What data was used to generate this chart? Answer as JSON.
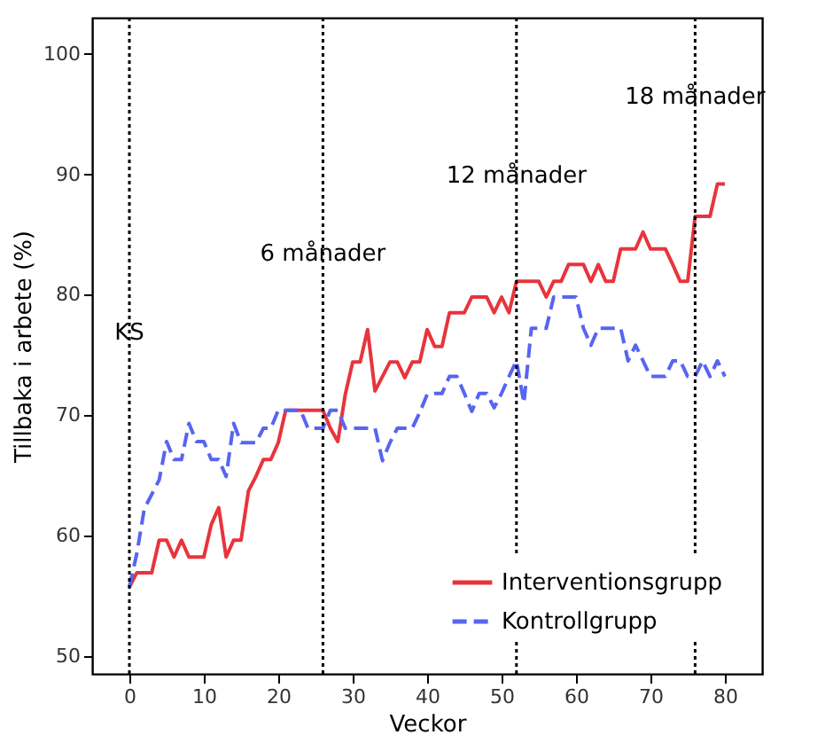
{
  "chart_data": {
    "type": "line",
    "xlabel": "Veckor",
    "ylabel": "Tillbaka i arbete (%)",
    "x": [
      0,
      1,
      2,
      3,
      4,
      5,
      6,
      7,
      8,
      9,
      10,
      11,
      12,
      13,
      14,
      15,
      16,
      17,
      18,
      19,
      20,
      21,
      22,
      23,
      24,
      25,
      26,
      27,
      28,
      29,
      30,
      31,
      32,
      33,
      34,
      35,
      36,
      37,
      38,
      39,
      40,
      41,
      42,
      43,
      44,
      45,
      46,
      47,
      48,
      49,
      50,
      51,
      52,
      53,
      54,
      55,
      56,
      57,
      58,
      59,
      60,
      61,
      62,
      63,
      64,
      65,
      66,
      67,
      68,
      69,
      70,
      71,
      72,
      73,
      74,
      75,
      76,
      77,
      78,
      79,
      80
    ],
    "series": [
      {
        "name": "Interventionsgrupp",
        "color": "#e8343c",
        "line_style": "solid",
        "values": [
          55.7,
          56.9,
          56.9,
          56.9,
          59.6,
          59.6,
          58.2,
          59.6,
          58.2,
          58.2,
          58.2,
          60.9,
          62.3,
          58.2,
          59.6,
          59.6,
          63.7,
          64.9,
          66.3,
          66.3,
          67.7,
          70.4,
          70.4,
          70.4,
          70.4,
          70.4,
          70.4,
          68.9,
          67.8,
          71.7,
          74.4,
          74.4,
          77.1,
          72.0,
          73.2,
          74.4,
          74.4,
          73.1,
          74.4,
          74.4,
          77.1,
          75.7,
          75.7,
          78.5,
          78.5,
          78.5,
          79.8,
          79.8,
          79.8,
          78.5,
          79.8,
          78.5,
          81.1,
          81.1,
          81.1,
          81.1,
          79.8,
          81.1,
          81.1,
          82.5,
          82.5,
          82.5,
          81.1,
          82.5,
          81.1,
          81.1,
          83.8,
          83.8,
          83.8,
          85.2,
          83.8,
          83.8,
          83.8,
          82.5,
          81.1,
          81.1,
          86.5,
          86.5,
          86.5,
          89.2,
          89.2
        ]
      },
      {
        "name": "Kontrollgrupp",
        "color": "#5865f0",
        "line_style": "dashed",
        "values": [
          55.7,
          58.5,
          62.2,
          63.4,
          64.6,
          67.8,
          66.3,
          66.3,
          69.3,
          67.8,
          67.8,
          66.3,
          66.3,
          64.9,
          69.3,
          67.7,
          67.7,
          67.7,
          68.9,
          68.9,
          70.4,
          70.4,
          70.4,
          70.4,
          68.9,
          68.9,
          68.9,
          70.4,
          70.4,
          68.9,
          68.9,
          68.9,
          68.9,
          68.9,
          66.2,
          67.7,
          68.9,
          68.9,
          68.9,
          70.2,
          71.7,
          71.8,
          71.8,
          73.2,
          73.2,
          71.8,
          70.3,
          71.8,
          71.8,
          70.6,
          71.8,
          73.2,
          74.5,
          71.0,
          77.2,
          77.2,
          77.2,
          79.8,
          79.8,
          79.8,
          79.8,
          77.2,
          75.8,
          77.2,
          77.2,
          77.2,
          77.2,
          74.5,
          75.8,
          74.5,
          73.2,
          73.2,
          73.2,
          74.5,
          74.5,
          73.2,
          73.2,
          74.5,
          73.2,
          74.5,
          73.2
        ]
      }
    ],
    "xlim": [
      -5,
      85
    ],
    "xticks": [
      0,
      10,
      20,
      30,
      40,
      50,
      60,
      70,
      80
    ],
    "ylim": [
      48.5,
      103
    ],
    "yticks": [
      50,
      60,
      70,
      80,
      90,
      100
    ],
    "ref_lines": [
      {
        "axis": "x",
        "value": 0,
        "label": "KS",
        "line_style": "dotted"
      },
      {
        "axis": "x",
        "value": 26,
        "label": "6 månader",
        "line_style": "dotted"
      },
      {
        "axis": "x",
        "value": 52,
        "label": "12 månader",
        "line_style": "dotted"
      },
      {
        "axis": "x",
        "value": 76,
        "label": "18 månader",
        "line_style": "dotted"
      }
    ],
    "legend": "bottom right",
    "grid": false
  }
}
